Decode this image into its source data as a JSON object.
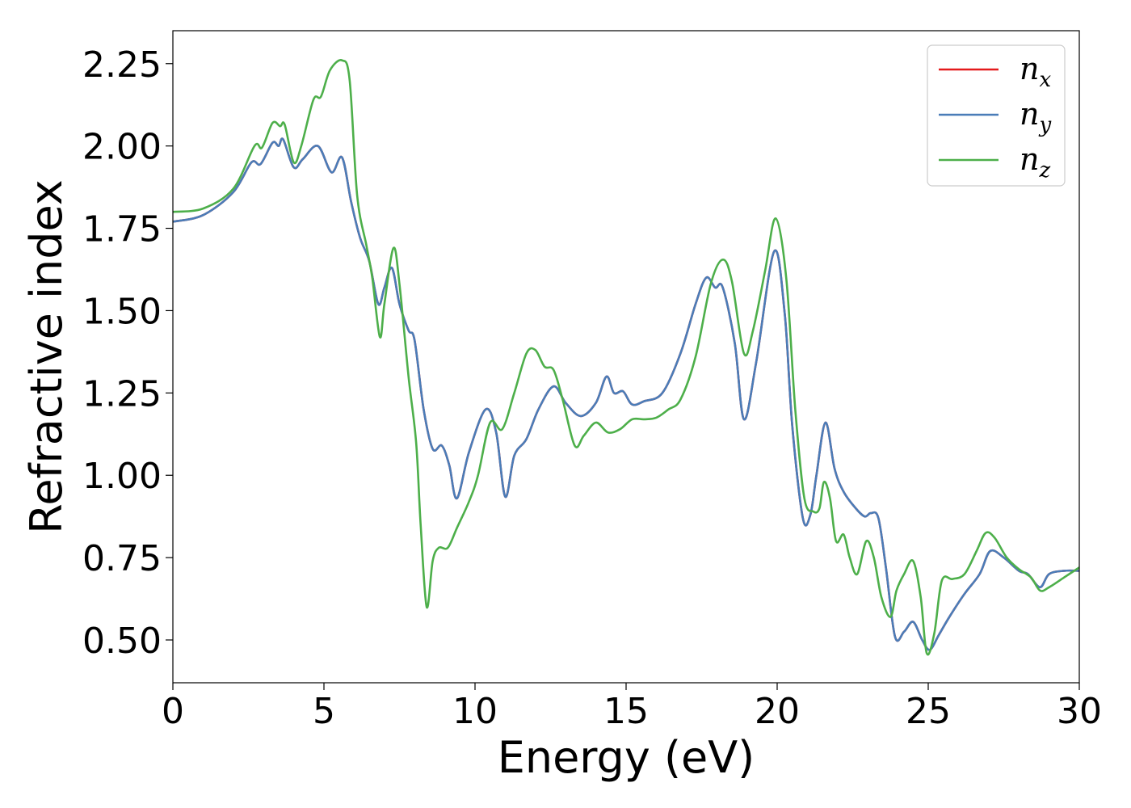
{
  "chart_data": {
    "type": "line",
    "title": "",
    "xlabel": "Energy (eV)",
    "ylabel": "Refractive index",
    "xlim": [
      0,
      30
    ],
    "ylim": [
      0.37,
      2.35
    ],
    "xticks": [
      0,
      5,
      10,
      15,
      20,
      25,
      30
    ],
    "xtick_labels": [
      "0",
      "5",
      "10",
      "15",
      "20",
      "25",
      "30"
    ],
    "yticks": [
      0.5,
      0.75,
      1.0,
      1.25,
      1.5,
      1.75,
      2.0,
      2.25
    ],
    "ytick_labels": [
      "0.50",
      "0.75",
      "1.00",
      "1.25",
      "1.50",
      "1.75",
      "2.00",
      "2.25"
    ],
    "grid": false,
    "legend_position": "top-right",
    "series": [
      {
        "name": "n",
        "subscript": "x",
        "color": "#e41a1c",
        "x": [
          0,
          1,
          2,
          2.6,
          2.9,
          3.3,
          3.5,
          3.65,
          4.0,
          4.3,
          4.8,
          5.25,
          5.6,
          5.9,
          6.2,
          6.5,
          6.8,
          7.0,
          7.25,
          7.5,
          7.8,
          8.0,
          8.3,
          8.6,
          8.9,
          9.15,
          9.4,
          9.8,
          10.35,
          10.7,
          11.0,
          11.3,
          11.7,
          12.1,
          12.6,
          13.0,
          13.5,
          14.0,
          14.35,
          14.6,
          14.9,
          15.2,
          15.6,
          16.2,
          16.8,
          17.3,
          17.65,
          17.95,
          18.2,
          18.6,
          18.9,
          19.3,
          19.9,
          20.25,
          20.5,
          20.85,
          21.1,
          21.3,
          21.6,
          21.9,
          22.2,
          22.6,
          22.9,
          23.1,
          23.35,
          23.6,
          23.9,
          24.2,
          24.5,
          24.8,
          25.05,
          25.35,
          25.7,
          26.2,
          26.7,
          27.05,
          27.5,
          28.0,
          28.3,
          28.7,
          29.0,
          29.5,
          30.0
        ],
        "y": [
          1.77,
          1.79,
          1.86,
          1.95,
          1.945,
          2.01,
          2.0,
          2.02,
          1.935,
          1.96,
          2.0,
          1.92,
          1.965,
          1.83,
          1.72,
          1.65,
          1.52,
          1.57,
          1.63,
          1.52,
          1.44,
          1.41,
          1.2,
          1.08,
          1.09,
          1.03,
          0.93,
          1.07,
          1.2,
          1.13,
          0.935,
          1.06,
          1.11,
          1.2,
          1.27,
          1.22,
          1.18,
          1.22,
          1.3,
          1.25,
          1.255,
          1.215,
          1.225,
          1.25,
          1.37,
          1.52,
          1.6,
          1.57,
          1.57,
          1.4,
          1.17,
          1.34,
          1.68,
          1.49,
          1.15,
          0.87,
          0.88,
          1.0,
          1.16,
          1.02,
          0.95,
          0.9,
          0.875,
          0.885,
          0.87,
          0.72,
          0.51,
          0.525,
          0.555,
          0.5,
          0.47,
          0.515,
          0.57,
          0.64,
          0.7,
          0.77,
          0.75,
          0.71,
          0.7,
          0.66,
          0.7,
          0.71,
          0.71
        ]
      },
      {
        "name": "n",
        "subscript": "y",
        "color": "#4a7db8",
        "x": [
          0,
          1,
          2,
          2.6,
          2.9,
          3.3,
          3.5,
          3.65,
          4.0,
          4.3,
          4.8,
          5.25,
          5.6,
          5.9,
          6.2,
          6.5,
          6.8,
          7.0,
          7.25,
          7.5,
          7.8,
          8.0,
          8.3,
          8.6,
          8.9,
          9.15,
          9.4,
          9.8,
          10.35,
          10.7,
          11.0,
          11.3,
          11.7,
          12.1,
          12.6,
          13.0,
          13.5,
          14.0,
          14.35,
          14.6,
          14.9,
          15.2,
          15.6,
          16.2,
          16.8,
          17.3,
          17.65,
          17.95,
          18.2,
          18.6,
          18.9,
          19.3,
          19.9,
          20.25,
          20.5,
          20.85,
          21.1,
          21.3,
          21.6,
          21.9,
          22.2,
          22.6,
          22.9,
          23.1,
          23.35,
          23.6,
          23.9,
          24.2,
          24.5,
          24.8,
          25.05,
          25.35,
          25.7,
          26.2,
          26.7,
          27.05,
          27.5,
          28.0,
          28.3,
          28.7,
          29.0,
          29.5,
          30.0
        ],
        "y": [
          1.77,
          1.79,
          1.86,
          1.95,
          1.945,
          2.01,
          2.0,
          2.02,
          1.935,
          1.96,
          2.0,
          1.92,
          1.965,
          1.83,
          1.72,
          1.65,
          1.52,
          1.57,
          1.63,
          1.52,
          1.44,
          1.41,
          1.2,
          1.08,
          1.09,
          1.03,
          0.93,
          1.07,
          1.2,
          1.13,
          0.935,
          1.06,
          1.11,
          1.2,
          1.27,
          1.22,
          1.18,
          1.22,
          1.3,
          1.25,
          1.255,
          1.215,
          1.225,
          1.25,
          1.37,
          1.52,
          1.6,
          1.57,
          1.57,
          1.4,
          1.17,
          1.34,
          1.68,
          1.49,
          1.15,
          0.87,
          0.88,
          1.0,
          1.16,
          1.02,
          0.95,
          0.9,
          0.875,
          0.885,
          0.87,
          0.72,
          0.51,
          0.525,
          0.555,
          0.5,
          0.47,
          0.515,
          0.57,
          0.64,
          0.7,
          0.77,
          0.75,
          0.71,
          0.7,
          0.66,
          0.7,
          0.71,
          0.71
        ]
      },
      {
        "name": "n",
        "subscript": "z",
        "color": "#4daf4a",
        "x": [
          0,
          1,
          2,
          2.7,
          2.95,
          3.3,
          3.55,
          3.7,
          4.0,
          4.25,
          4.65,
          4.9,
          5.2,
          5.6,
          5.85,
          6.1,
          6.4,
          6.6,
          6.85,
          7.0,
          7.3,
          7.5,
          7.8,
          8.05,
          8.2,
          8.4,
          8.6,
          8.8,
          9.1,
          9.4,
          9.8,
          10.1,
          10.5,
          10.9,
          11.3,
          11.7,
          12.0,
          12.3,
          12.6,
          12.9,
          13.3,
          13.6,
          14.0,
          14.4,
          14.8,
          15.2,
          15.6,
          16.0,
          16.4,
          16.8,
          17.3,
          17.8,
          18.2,
          18.5,
          18.9,
          19.2,
          19.6,
          19.95,
          20.3,
          20.6,
          20.9,
          21.2,
          21.4,
          21.55,
          21.75,
          21.95,
          22.2,
          22.4,
          22.65,
          22.95,
          23.2,
          23.45,
          23.75,
          23.95,
          24.2,
          24.5,
          24.75,
          24.95,
          25.2,
          25.45,
          25.8,
          26.2,
          26.6,
          26.9,
          27.2,
          27.6,
          28.0,
          28.4,
          28.7,
          29.0,
          29.5,
          30.0
        ],
        "y": [
          1.8,
          1.81,
          1.87,
          2.0,
          1.995,
          2.07,
          2.06,
          2.065,
          1.95,
          2.0,
          2.14,
          2.15,
          2.23,
          2.26,
          2.2,
          1.85,
          1.7,
          1.6,
          1.42,
          1.52,
          1.69,
          1.58,
          1.3,
          1.1,
          0.85,
          0.6,
          0.74,
          0.78,
          0.78,
          0.84,
          0.92,
          1.0,
          1.16,
          1.14,
          1.25,
          1.37,
          1.38,
          1.33,
          1.32,
          1.23,
          1.09,
          1.12,
          1.16,
          1.13,
          1.14,
          1.17,
          1.17,
          1.175,
          1.2,
          1.23,
          1.36,
          1.58,
          1.655,
          1.59,
          1.37,
          1.44,
          1.62,
          1.78,
          1.6,
          1.2,
          0.93,
          0.89,
          0.9,
          0.98,
          0.93,
          0.8,
          0.82,
          0.75,
          0.7,
          0.8,
          0.75,
          0.63,
          0.57,
          0.65,
          0.7,
          0.74,
          0.63,
          0.46,
          0.52,
          0.68,
          0.685,
          0.7,
          0.77,
          0.825,
          0.81,
          0.75,
          0.715,
          0.69,
          0.65,
          0.66,
          0.69,
          0.72
        ]
      }
    ]
  }
}
